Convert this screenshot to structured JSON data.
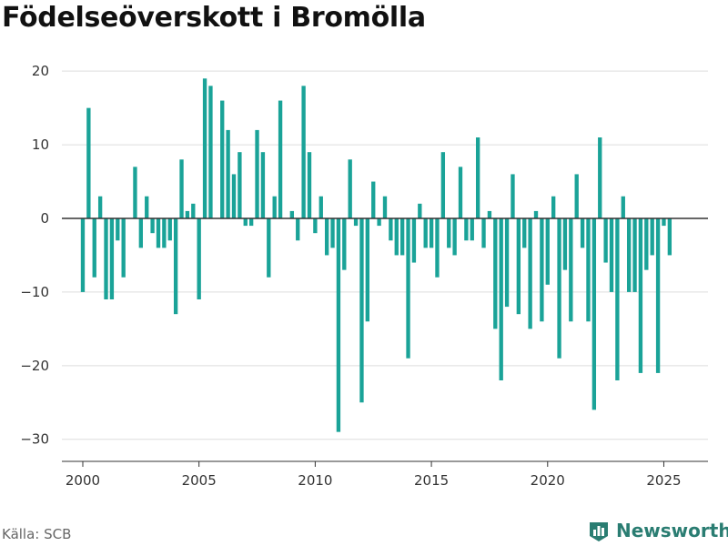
{
  "title": "Födelseöverskott i Bromölla",
  "source": "Källa: SCB",
  "brand": "Newsworthy",
  "colors": {
    "bar": "#1aa398",
    "grid": "#dddddd",
    "zero_line": "#333333",
    "axis": "#333333",
    "brand": "#2a7d72"
  },
  "chart_data": {
    "type": "bar",
    "title": "Födelseöverskott i Bromölla",
    "xlabel": "",
    "ylabel": "",
    "ylim": [
      -33,
      22
    ],
    "xlim": [
      1999.1,
      2026.9
    ],
    "grid": true,
    "yticks": [
      -30,
      -20,
      -10,
      0,
      10,
      20
    ],
    "ytick_labels": [
      "−30",
      "−20",
      "−10",
      "0",
      "10",
      "20"
    ],
    "xticks": [
      2000,
      2005,
      2010,
      2015,
      2020,
      2025
    ],
    "xtick_labels": [
      "2000",
      "2005",
      "2010",
      "2015",
      "2020",
      "2025"
    ],
    "frequency": "quarterly",
    "start": "2000-Q1",
    "values": [
      -10,
      15,
      -8,
      3,
      -11,
      -11,
      -3,
      -8,
      0,
      7,
      -4,
      3,
      -2,
      -4,
      -4,
      -3,
      -13,
      8,
      1,
      2,
      -11,
      19,
      18,
      0,
      16,
      12,
      6,
      9,
      -1,
      -1,
      12,
      9,
      -8,
      3,
      16,
      0,
      1,
      -3,
      18,
      9,
      -2,
      3,
      -5,
      -4,
      -29,
      -7,
      8,
      -1,
      -25,
      -14,
      5,
      -1,
      3,
      -3,
      -5,
      -5,
      -19,
      -6,
      2,
      -4,
      -4,
      -8,
      9,
      -4,
      -5,
      7,
      -3,
      -3,
      11,
      -4,
      1,
      -15,
      -22,
      -12,
      6,
      -13,
      -4,
      -15,
      1,
      -14,
      -9,
      3,
      -19,
      -7,
      -14,
      6,
      -4,
      -14,
      -26,
      11,
      -6,
      -10,
      -22,
      3,
      -10,
      -10,
      -21,
      -7,
      -5,
      -21,
      -1,
      -5
    ]
  }
}
